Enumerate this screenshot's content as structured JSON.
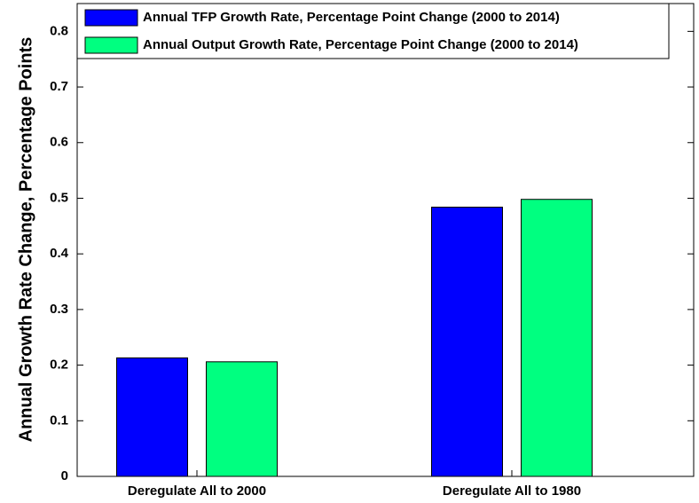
{
  "chart_data": {
    "type": "bar",
    "y_label": "Annual Growth Rate Change, Percentage Points",
    "categories": [
      "Deregulate All to 2000",
      "Deregulate All to 1980"
    ],
    "series": [
      {
        "name": "Annual TFP Growth Rate, Percentage Point Change (2000 to 2014)",
        "color": "#0000ff",
        "values": [
          0.213,
          0.484
        ]
      },
      {
        "name": "Annual Output Growth Rate, Percentage Point Change (2000 to 2014)",
        "color": "#00ff80",
        "values": [
          0.206,
          0.498
        ]
      }
    ],
    "ylim": [
      0,
      0.85
    ],
    "yticks": [
      0,
      0.1,
      0.2,
      0.3,
      0.4,
      0.5,
      0.6,
      0.7,
      0.8
    ],
    "legend": "top-left"
  }
}
